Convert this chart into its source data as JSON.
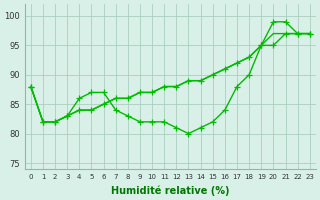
{
  "x": [
    0,
    1,
    2,
    3,
    4,
    5,
    6,
    7,
    8,
    9,
    10,
    11,
    12,
    13,
    14,
    15,
    16,
    17,
    18,
    19,
    20,
    21,
    22,
    23
  ],
  "line_wiggly": [
    88,
    82,
    82,
    83,
    86,
    87,
    87,
    84,
    83,
    82,
    82,
    82,
    81,
    80,
    81,
    82,
    84,
    88,
    90,
    95,
    99,
    99,
    97,
    97
  ],
  "line_smooth1": [
    88,
    82,
    82,
    83,
    84,
    84,
    85,
    86,
    86,
    87,
    87,
    88,
    88,
    89,
    89,
    90,
    91,
    92,
    93,
    95,
    95,
    97,
    97,
    97
  ],
  "line_smooth2": [
    88,
    82,
    82,
    83,
    84,
    84,
    85,
    86,
    86,
    87,
    87,
    88,
    88,
    89,
    89,
    90,
    91,
    92,
    93,
    95,
    97,
    97,
    97,
    97
  ],
  "line_color": "#00bb00",
  "bg_color": "#d8f0e8",
  "grid_color": "#aacfbe",
  "xlabel": "Humidité relative (%)",
  "xlabel_color": "#007700",
  "ylabel_ticks": [
    75,
    80,
    85,
    90,
    95,
    100
  ],
  "xlim": [
    -0.5,
    23.5
  ],
  "ylim": [
    74,
    102
  ],
  "figsize": [
    3.2,
    2.0
  ],
  "dpi": 100
}
